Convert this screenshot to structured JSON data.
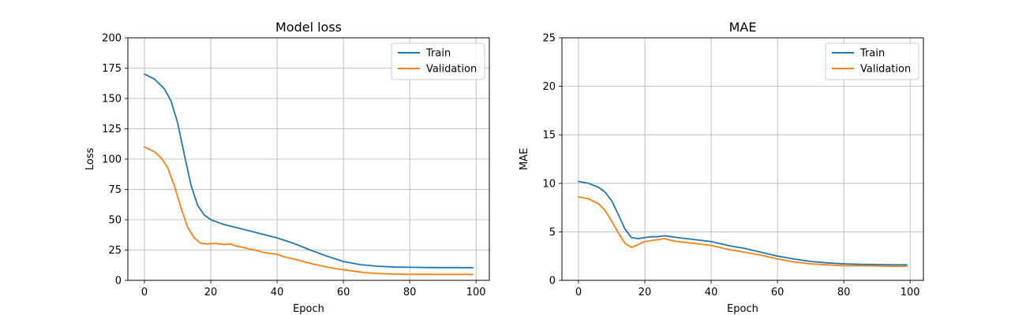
{
  "chart_data": [
    {
      "type": "line",
      "title": "Model loss",
      "xlabel": "Epoch",
      "ylabel": "Loss",
      "xlim": [
        -5,
        104
      ],
      "ylim": [
        0,
        200
      ],
      "xticks": [
        0,
        20,
        40,
        60,
        80,
        100
      ],
      "yticks": [
        0,
        25,
        50,
        75,
        100,
        125,
        150,
        175,
        200
      ],
      "grid": true,
      "legend_position": "top-right",
      "series": [
        {
          "name": "Train",
          "color": "#1f77b4",
          "points": [
            [
              0,
              170
            ],
            [
              3,
              166
            ],
            [
              6,
              158
            ],
            [
              8,
              148
            ],
            [
              10,
              130
            ],
            [
              12,
              104
            ],
            [
              14,
              79
            ],
            [
              16,
              62
            ],
            [
              18,
              54
            ],
            [
              20,
              50
            ],
            [
              24,
              46
            ],
            [
              30,
              42
            ],
            [
              35,
              38.5
            ],
            [
              40,
              35
            ],
            [
              45,
              30.5
            ],
            [
              50,
              25
            ],
            [
              55,
              20
            ],
            [
              60,
              15.5
            ],
            [
              65,
              13
            ],
            [
              70,
              11.7
            ],
            [
              75,
              11
            ],
            [
              80,
              10.8
            ],
            [
              85,
              10.6
            ],
            [
              90,
              10.5
            ],
            [
              95,
              10.5
            ],
            [
              99,
              10.4
            ]
          ]
        },
        {
          "name": "Validation",
          "color": "#ff7f0e",
          "points": [
            [
              0,
              110
            ],
            [
              3,
              106
            ],
            [
              5,
              101
            ],
            [
              7,
              93
            ],
            [
              9,
              78
            ],
            [
              11,
              60
            ],
            [
              13,
              44
            ],
            [
              15,
              35
            ],
            [
              17,
              30.5
            ],
            [
              19,
              30
            ],
            [
              21,
              30.5
            ],
            [
              23,
              30
            ],
            [
              24,
              29.5
            ],
            [
              26,
              30
            ],
            [
              28,
              28
            ],
            [
              30,
              27
            ],
            [
              32,
              25.5
            ],
            [
              34,
              24.5
            ],
            [
              36,
              23
            ],
            [
              40,
              21.5
            ],
            [
              42,
              19.5
            ],
            [
              46,
              17
            ],
            [
              48,
              15.5
            ],
            [
              50,
              14
            ],
            [
              54,
              11.5
            ],
            [
              58,
              9.5
            ],
            [
              62,
              8
            ],
            [
              66,
              6.5
            ],
            [
              70,
              5.7
            ],
            [
              75,
              5.2
            ],
            [
              80,
              5
            ],
            [
              85,
              5
            ],
            [
              90,
              4.9
            ],
            [
              95,
              4.9
            ],
            [
              99,
              4.9
            ]
          ]
        }
      ]
    },
    {
      "type": "line",
      "title": "MAE",
      "xlabel": "Epoch",
      "ylabel": "MAE",
      "xlim": [
        -5,
        104
      ],
      "ylim": [
        0,
        25
      ],
      "xticks": [
        0,
        20,
        40,
        60,
        80,
        100
      ],
      "yticks": [
        0,
        5,
        10,
        15,
        20,
        25
      ],
      "grid": true,
      "legend_position": "top-right",
      "series": [
        {
          "name": "Train",
          "color": "#1f77b4",
          "points": [
            [
              0,
              10.2
            ],
            [
              3,
              10
            ],
            [
              6,
              9.6
            ],
            [
              8,
              9.1
            ],
            [
              10,
              8.2
            ],
            [
              12,
              6.8
            ],
            [
              14,
              5.3
            ],
            [
              16,
              4.4
            ],
            [
              18,
              4.3
            ],
            [
              20,
              4.4
            ],
            [
              22,
              4.5
            ],
            [
              24,
              4.5
            ],
            [
              26,
              4.6
            ],
            [
              28,
              4.5
            ],
            [
              30,
              4.4
            ],
            [
              35,
              4.2
            ],
            [
              40,
              4.0
            ],
            [
              45,
              3.6
            ],
            [
              50,
              3.3
            ],
            [
              55,
              2.9
            ],
            [
              60,
              2.5
            ],
            [
              65,
              2.2
            ],
            [
              70,
              1.95
            ],
            [
              75,
              1.8
            ],
            [
              80,
              1.7
            ],
            [
              85,
              1.65
            ],
            [
              90,
              1.62
            ],
            [
              95,
              1.6
            ],
            [
              99,
              1.6
            ]
          ]
        },
        {
          "name": "Validation",
          "color": "#ff7f0e",
          "points": [
            [
              0,
              8.6
            ],
            [
              3,
              8.4
            ],
            [
              6,
              7.9
            ],
            [
              8,
              7.2
            ],
            [
              10,
              6.1
            ],
            [
              12,
              4.9
            ],
            [
              14,
              3.8
            ],
            [
              16,
              3.4
            ],
            [
              18,
              3.7
            ],
            [
              20,
              4.0
            ],
            [
              22,
              4.1
            ],
            [
              24,
              4.2
            ],
            [
              26,
              4.3
            ],
            [
              28,
              4.1
            ],
            [
              30,
              4.0
            ],
            [
              35,
              3.8
            ],
            [
              40,
              3.6
            ],
            [
              45,
              3.2
            ],
            [
              50,
              2.9
            ],
            [
              55,
              2.6
            ],
            [
              60,
              2.2
            ],
            [
              65,
              1.9
            ],
            [
              70,
              1.7
            ],
            [
              75,
              1.6
            ],
            [
              80,
              1.5
            ],
            [
              85,
              1.5
            ],
            [
              90,
              1.48
            ],
            [
              95,
              1.45
            ],
            [
              99,
              1.45
            ]
          ]
        }
      ]
    }
  ]
}
